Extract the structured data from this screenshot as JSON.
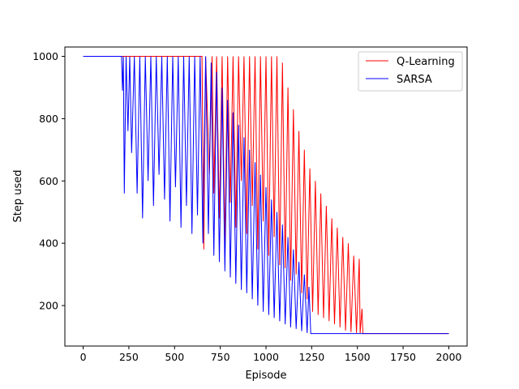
{
  "chart_data": {
    "type": "line",
    "title": "",
    "xlabel": "Episode",
    "ylabel": "Step used",
    "xlim": [
      -100,
      2100
    ],
    "ylim": [
      70,
      1030
    ],
    "xticks": [
      0,
      250,
      500,
      750,
      1000,
      1250,
      1500,
      1750,
      2000
    ],
    "yticks": [
      200,
      400,
      600,
      800,
      1000
    ],
    "legend_position": "top-right",
    "grid": false,
    "series": [
      {
        "name": "Q-Learning",
        "color": "#ff0000",
        "points": [
          [
            0,
            1000
          ],
          [
            650,
            1000
          ],
          [
            660,
            380
          ],
          [
            670,
            1000
          ],
          [
            690,
            620
          ],
          [
            705,
            1000
          ],
          [
            715,
            560
          ],
          [
            730,
            1000
          ],
          [
            745,
            480
          ],
          [
            760,
            1000
          ],
          [
            775,
            400
          ],
          [
            790,
            1000
          ],
          [
            805,
            530
          ],
          [
            820,
            1000
          ],
          [
            835,
            450
          ],
          [
            850,
            1000
          ],
          [
            865,
            600
          ],
          [
            880,
            1000
          ],
          [
            895,
            430
          ],
          [
            910,
            1000
          ],
          [
            925,
            520
          ],
          [
            940,
            1000
          ],
          [
            955,
            380
          ],
          [
            970,
            1000
          ],
          [
            985,
            470
          ],
          [
            1000,
            1000
          ],
          [
            1015,
            360
          ],
          [
            1030,
            1000
          ],
          [
            1045,
            420
          ],
          [
            1060,
            1000
          ],
          [
            1075,
            330
          ],
          [
            1090,
            980
          ],
          [
            1105,
            320
          ],
          [
            1120,
            900
          ],
          [
            1135,
            280
          ],
          [
            1150,
            830
          ],
          [
            1165,
            300
          ],
          [
            1180,
            760
          ],
          [
            1195,
            240
          ],
          [
            1210,
            700
          ],
          [
            1225,
            220
          ],
          [
            1240,
            640
          ],
          [
            1255,
            180
          ],
          [
            1270,
            600
          ],
          [
            1285,
            170
          ],
          [
            1300,
            560
          ],
          [
            1315,
            160
          ],
          [
            1330,
            520
          ],
          [
            1345,
            150
          ],
          [
            1360,
            480
          ],
          [
            1375,
            140
          ],
          [
            1390,
            450
          ],
          [
            1405,
            130
          ],
          [
            1420,
            420
          ],
          [
            1435,
            120
          ],
          [
            1450,
            400
          ],
          [
            1465,
            115
          ],
          [
            1480,
            360
          ],
          [
            1495,
            112
          ],
          [
            1510,
            350
          ],
          [
            1515,
            112
          ],
          [
            1525,
            190
          ],
          [
            1530,
            110
          ],
          [
            2000,
            110
          ]
        ]
      },
      {
        "name": "SARSA",
        "color": "#0000ff",
        "points": [
          [
            0,
            1000
          ],
          [
            210,
            1000
          ],
          [
            215,
            890
          ],
          [
            220,
            1000
          ],
          [
            225,
            560
          ],
          [
            235,
            1000
          ],
          [
            245,
            760
          ],
          [
            255,
            1000
          ],
          [
            265,
            690
          ],
          [
            280,
            1000
          ],
          [
            295,
            560
          ],
          [
            310,
            1000
          ],
          [
            325,
            480
          ],
          [
            340,
            1000
          ],
          [
            355,
            600
          ],
          [
            370,
            1000
          ],
          [
            385,
            520
          ],
          [
            400,
            1000
          ],
          [
            415,
            620
          ],
          [
            430,
            1000
          ],
          [
            445,
            540
          ],
          [
            460,
            1000
          ],
          [
            475,
            470
          ],
          [
            490,
            1000
          ],
          [
            505,
            580
          ],
          [
            520,
            1000
          ],
          [
            535,
            450
          ],
          [
            550,
            1000
          ],
          [
            565,
            520
          ],
          [
            580,
            1000
          ],
          [
            595,
            430
          ],
          [
            610,
            1000
          ],
          [
            625,
            490
          ],
          [
            640,
            1000
          ],
          [
            655,
            400
          ],
          [
            670,
            1000
          ],
          [
            685,
            430
          ],
          [
            700,
            980
          ],
          [
            715,
            360
          ],
          [
            730,
            950
          ],
          [
            745,
            340
          ],
          [
            760,
            900
          ],
          [
            775,
            310
          ],
          [
            790,
            860
          ],
          [
            805,
            290
          ],
          [
            820,
            820
          ],
          [
            835,
            270
          ],
          [
            850,
            780
          ],
          [
            865,
            250
          ],
          [
            880,
            740
          ],
          [
            895,
            240
          ],
          [
            910,
            700
          ],
          [
            925,
            220
          ],
          [
            940,
            660
          ],
          [
            955,
            200
          ],
          [
            970,
            620
          ],
          [
            985,
            180
          ],
          [
            1000,
            580
          ],
          [
            1015,
            170
          ],
          [
            1030,
            540
          ],
          [
            1045,
            160
          ],
          [
            1060,
            500
          ],
          [
            1075,
            150
          ],
          [
            1090,
            460
          ],
          [
            1105,
            140
          ],
          [
            1120,
            420
          ],
          [
            1135,
            130
          ],
          [
            1150,
            380
          ],
          [
            1165,
            125
          ],
          [
            1180,
            340
          ],
          [
            1195,
            118
          ],
          [
            1210,
            300
          ],
          [
            1225,
            112
          ],
          [
            1235,
            260
          ],
          [
            1245,
            110
          ],
          [
            2000,
            110
          ]
        ]
      }
    ]
  }
}
